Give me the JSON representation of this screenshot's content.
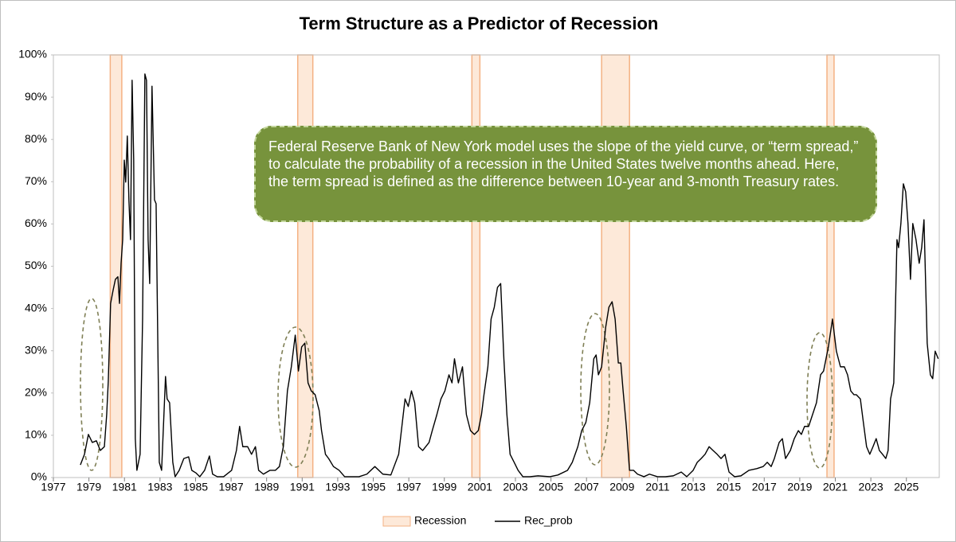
{
  "chart_data": {
    "type": "line",
    "title": "Term Structure as a Predictor of Recession",
    "annotation": "Federal Reserve Bank of New York model uses the slope of the yield curve, or “term spread,” to calculate the probability of a recession in the United States twelve months ahead. Here, the term spread is defined as the difference between 10-year and 3-month Treasury rates.",
    "xlim": [
      1977,
      2026.85
    ],
    "ylim": [
      0,
      100
    ],
    "xticks": [
      1977,
      1979,
      1981,
      1983,
      1985,
      1987,
      1989,
      1991,
      1993,
      1995,
      1997,
      1999,
      2001,
      2003,
      2005,
      2007,
      2009,
      2011,
      2013,
      2015,
      2017,
      2019,
      2021,
      2023,
      2025
    ],
    "yticks": [
      {
        "value": 0,
        "label": "0%"
      },
      {
        "value": 10,
        "label": "10%"
      },
      {
        "value": 20,
        "label": "20%"
      },
      {
        "value": 30,
        "label": "30%"
      },
      {
        "value": 40,
        "label": "40%"
      },
      {
        "value": 50,
        "label": "50%"
      },
      {
        "value": 60,
        "label": "60%"
      },
      {
        "value": 70,
        "label": "70%"
      },
      {
        "value": 80,
        "label": "80%"
      },
      {
        "value": 90,
        "label": "90%"
      },
      {
        "value": 100,
        "label": "100%"
      }
    ],
    "recession": {
      "name": "Recession",
      "color": "#fde9d9",
      "border": "#f4b183",
      "ranges": [
        {
          "start": 1980.2,
          "end": 1980.85
        },
        {
          "start": 1990.75,
          "end": 1991.6
        },
        {
          "start": 2000.55,
          "end": 2001.0
        },
        {
          "start": 2007.85,
          "end": 2009.42
        },
        {
          "start": 2020.53,
          "end": 2020.93
        }
      ]
    },
    "x": [
      1978.52,
      1978.75,
      1978.97,
      1979.19,
      1979.42,
      1979.64,
      1979.87,
      1980.0,
      1980.09,
      1980.22,
      1980.36,
      1980.49,
      1980.63,
      1980.72,
      1980.81,
      1980.9,
      1980.99,
      1981.07,
      1981.16,
      1981.25,
      1981.34,
      1981.43,
      1981.52,
      1981.61,
      1981.7,
      1981.88,
      1982.02,
      1982.15,
      1982.24,
      1982.33,
      1982.42,
      1982.55,
      1982.69,
      1982.78,
      1982.96,
      1983.09,
      1983.31,
      1983.4,
      1983.54,
      1983.72,
      1983.85,
      1984.08,
      1984.34,
      1984.61,
      1984.79,
      1985.02,
      1985.24,
      1985.51,
      1985.78,
      1985.96,
      1986.22,
      1986.58,
      1987.03,
      1987.3,
      1987.48,
      1987.66,
      1987.93,
      1988.15,
      1988.37,
      1988.55,
      1988.82,
      1989.18,
      1989.49,
      1989.72,
      1989.94,
      1990.17,
      1990.39,
      1990.61,
      1990.79,
      1990.97,
      1991.15,
      1991.33,
      1991.51,
      1991.73,
      1991.96,
      1992.09,
      1992.31,
      1992.49,
      1992.76,
      1993.08,
      1993.39,
      1993.75,
      1994.2,
      1994.64,
      1995.09,
      1995.54,
      1995.99,
      1996.43,
      1996.66,
      1996.79,
      1996.97,
      1997.15,
      1997.33,
      1997.55,
      1997.78,
      1998.14,
      1998.32,
      1998.58,
      1998.81,
      1999.03,
      1999.26,
      1999.43,
      1999.57,
      1999.79,
      2000.02,
      2000.24,
      2000.47,
      2000.69,
      2000.91,
      2001.09,
      2001.23,
      2001.45,
      2001.63,
      2001.81,
      2001.99,
      2002.17,
      2002.35,
      2002.52,
      2002.7,
      2002.93,
      2003.15,
      2003.42,
      2003.82,
      2004.27,
      2004.94,
      2005.39,
      2005.93,
      2006.2,
      2006.51,
      2006.73,
      2006.96,
      2007.18,
      2007.41,
      2007.54,
      2007.67,
      2007.85,
      2008.08,
      2008.26,
      2008.44,
      2008.61,
      2008.79,
      2008.93,
      2009.06,
      2009.24,
      2009.42,
      2009.65,
      2009.87,
      2010.23,
      2010.54,
      2010.99,
      2011.44,
      2011.88,
      2012.33,
      2012.64,
      2013.0,
      2013.23,
      2013.45,
      2013.67,
      2013.9,
      2014.12,
      2014.35,
      2014.57,
      2014.79,
      2015.02,
      2015.33,
      2015.69,
      2016.14,
      2016.58,
      2016.94,
      2017.17,
      2017.39,
      2017.57,
      2017.84,
      2018.02,
      2018.2,
      2018.47,
      2018.69,
      2018.92,
      2019.09,
      2019.27,
      2019.5,
      2019.72,
      2019.94,
      2020.17,
      2020.34,
      2020.61,
      2020.84,
      2021.06,
      2021.29,
      2021.51,
      2021.69,
      2021.87,
      2022.05,
      2022.18,
      2022.41,
      2022.58,
      2022.76,
      2022.94,
      2023.12,
      2023.3,
      2023.48,
      2023.66,
      2023.84,
      2023.97,
      2024.11,
      2024.29,
      2024.47,
      2024.56,
      2024.69,
      2024.83,
      2024.96,
      2025.09,
      2025.23,
      2025.36,
      2025.54,
      2025.72,
      2025.86,
      2025.99,
      2026.17,
      2026.35,
      2026.48,
      2026.62,
      2026.79
    ],
    "series": [
      {
        "name": "Rec_prob",
        "color": "#000000",
        "values": [
          3.0,
          5.5,
          10.2,
          8.3,
          8.7,
          6.4,
          7.3,
          14.9,
          22.8,
          41.2,
          44.3,
          46.9,
          47.5,
          41.2,
          50.7,
          56.3,
          75.1,
          69.9,
          80.8,
          65.7,
          56.3,
          94.0,
          75.1,
          9.2,
          1.7,
          5.5,
          37.5,
          95.5,
          94.0,
          56.3,
          45.9,
          92.6,
          65.7,
          64.8,
          3.6,
          1.7,
          23.9,
          18.6,
          17.7,
          3.6,
          0.2,
          1.7,
          4.5,
          4.9,
          1.7,
          1.1,
          0.2,
          1.7,
          5.1,
          0.8,
          0.2,
          0.2,
          1.7,
          6.4,
          12.1,
          7.3,
          7.3,
          5.5,
          7.3,
          1.7,
          0.8,
          1.7,
          1.7,
          2.6,
          7.3,
          20.5,
          26.2,
          33.7,
          25.2,
          30.9,
          31.8,
          22.4,
          20.5,
          19.6,
          15.8,
          11.1,
          5.5,
          4.5,
          2.6,
          1.7,
          0.2,
          0.2,
          0.2,
          0.8,
          2.6,
          0.8,
          0.6,
          5.5,
          13.9,
          18.6,
          16.8,
          20.5,
          17.7,
          7.3,
          6.4,
          8.3,
          11.1,
          14.9,
          18.6,
          20.5,
          24.3,
          22.4,
          28.1,
          22.4,
          26.2,
          14.9,
          11.1,
          10.2,
          11.1,
          14.9,
          19.6,
          26.2,
          37.5,
          40.3,
          45.0,
          45.9,
          28.1,
          14.9,
          5.5,
          3.6,
          1.7,
          0.2,
          0.2,
          0.4,
          0.2,
          0.6,
          1.7,
          3.6,
          7.3,
          11.1,
          13.0,
          17.7,
          28.1,
          29.0,
          24.3,
          26.2,
          35.6,
          40.3,
          41.6,
          37.5,
          27.1,
          27.1,
          20.5,
          12.1,
          1.7,
          1.7,
          0.8,
          0.2,
          0.8,
          0.2,
          0.2,
          0.4,
          1.3,
          0.2,
          1.7,
          3.6,
          4.5,
          5.5,
          7.3,
          6.4,
          5.5,
          4.5,
          5.5,
          1.3,
          0.2,
          0.4,
          1.7,
          2.1,
          2.6,
          3.6,
          2.6,
          4.5,
          8.3,
          9.2,
          4.5,
          6.4,
          9.2,
          11.1,
          10.2,
          12.1,
          12.1,
          14.9,
          17.7,
          24.3,
          25.2,
          30.9,
          37.5,
          29.9,
          26.2,
          26.2,
          24.3,
          20.5,
          19.6,
          19.6,
          18.6,
          13.0,
          7.3,
          5.5,
          7.3,
          9.2,
          6.4,
          5.5,
          4.5,
          6.4,
          18.6,
          22.4,
          56.3,
          54.4,
          60.1,
          69.5,
          67.6,
          60.1,
          46.9,
          60.1,
          56.3,
          50.7,
          54.4,
          61.0,
          31.8,
          24.3,
          23.4,
          29.9,
          28.1
        ]
      }
    ]
  }
}
